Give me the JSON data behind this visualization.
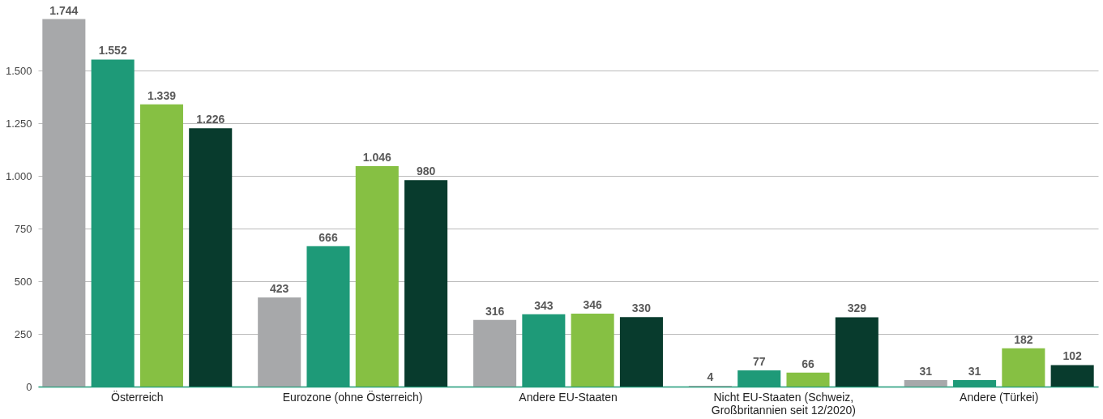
{
  "chart_data": {
    "type": "bar",
    "categories": [
      "Österreich",
      "Eurozone (ohne Österreich)",
      "Andere EU-Staaten",
      "Nicht EU-Staaten (Schweiz, Großbritannien seit 12/2020)",
      "Andere (Türkei)"
    ],
    "series": [
      {
        "color": "#a7a8aa",
        "values": [
          1744,
          423,
          316,
          4,
          31
        ],
        "value_labels": [
          "1.744",
          "423",
          "316",
          "4",
          "31"
        ]
      },
      {
        "color": "#1e9a78",
        "values": [
          1552,
          666,
          343,
          77,
          31
        ],
        "value_labels": [
          "1.552",
          "666",
          "343",
          "77",
          "31"
        ]
      },
      {
        "color": "#86c043",
        "values": [
          1339,
          1046,
          346,
          66,
          182
        ],
        "value_labels": [
          "1.339",
          "1.046",
          "346",
          "66",
          "182"
        ]
      },
      {
        "color": "#083b2d",
        "values": [
          1226,
          980,
          330,
          329,
          102
        ],
        "value_labels": [
          "1.226",
          "980",
          "330",
          "329",
          "102"
        ]
      }
    ],
    "ylim": [
      0,
      1750
    ],
    "yticks": [
      0,
      250,
      500,
      750,
      {
        "value": 1000,
        "label": "1.000"
      },
      {
        "value": 1250,
        "label": "1.250"
      },
      {
        "value": 1500,
        "label": "1.500"
      }
    ],
    "grid": "y"
  }
}
